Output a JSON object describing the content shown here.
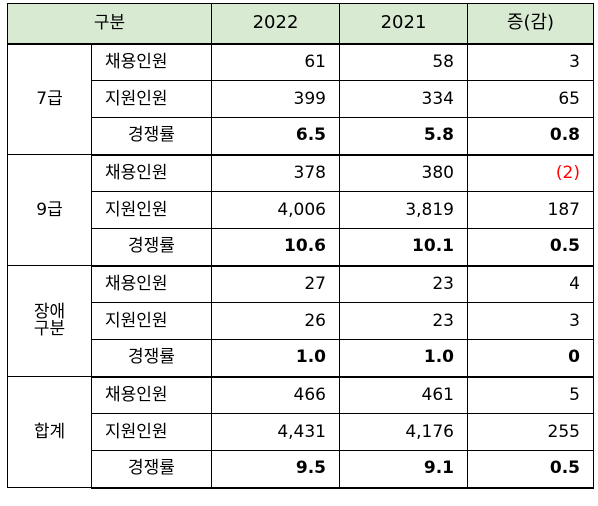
{
  "table": {
    "headers": {
      "category": "구분",
      "year_2022": "2022",
      "year_2021": "2021",
      "change": "증(감)"
    },
    "groups": [
      {
        "name": "7급",
        "rows": [
          {
            "label": "채용인원",
            "v2022": "61",
            "v2021": "58",
            "change": "3"
          },
          {
            "label": "지원인원",
            "v2022": "399",
            "v2021": "334",
            "change": "65"
          },
          {
            "label": "경쟁률",
            "v2022": "6.5",
            "v2021": "5.8",
            "change": "0.8"
          }
        ]
      },
      {
        "name": "9급",
        "rows": [
          {
            "label": "채용인원",
            "v2022": "378",
            "v2021": "380",
            "change": "(2)"
          },
          {
            "label": "지원인원",
            "v2022": "4,006",
            "v2021": "3,819",
            "change": "187"
          },
          {
            "label": "경쟁률",
            "v2022": "10.6",
            "v2021": "10.1",
            "change": "0.5"
          }
        ]
      },
      {
        "name_lines": [
          "장애",
          "구분"
        ],
        "rows": [
          {
            "label": "채용인원",
            "v2022": "27",
            "v2021": "23",
            "change": "4"
          },
          {
            "label": "지원인원",
            "v2022": "26",
            "v2021": "23",
            "change": "3"
          },
          {
            "label": "경쟁률",
            "v2022": "1.0",
            "v2021": "1.0",
            "change": "0"
          }
        ]
      },
      {
        "name": "합계",
        "rows": [
          {
            "label": "채용인원",
            "v2022": "466",
            "v2021": "461",
            "change": "5"
          },
          {
            "label": "지원인원",
            "v2022": "4,431",
            "v2021": "4,176",
            "change": "255"
          },
          {
            "label": "경쟁률",
            "v2022": "9.5",
            "v2021": "9.1",
            "change": "0.5"
          }
        ]
      }
    ],
    "colors": {
      "header_bg": "#d9ead3",
      "border": "#000000",
      "negative": "#ff0000"
    }
  }
}
